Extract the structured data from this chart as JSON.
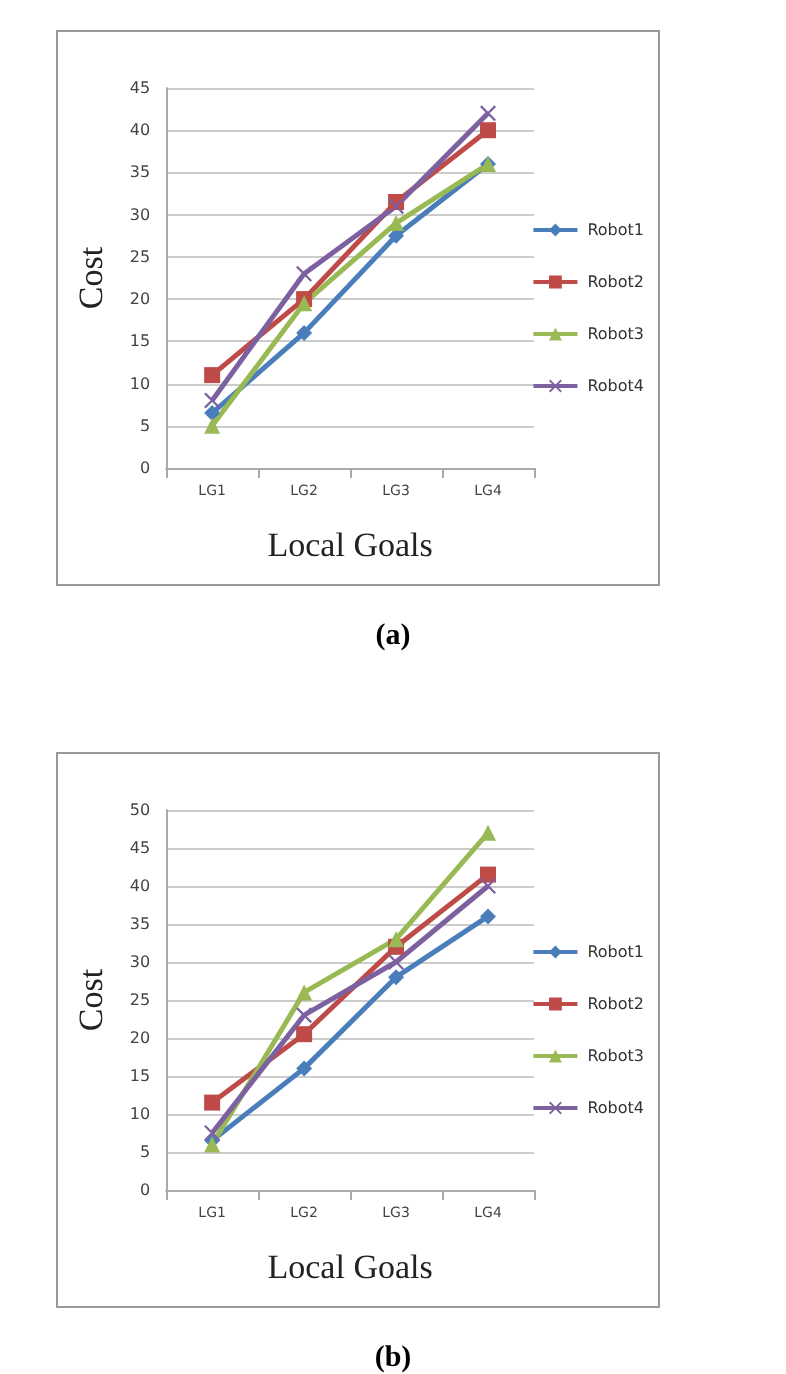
{
  "chart_data": [
    {
      "type": "line",
      "xlabel": "Local Goals",
      "ylabel": "Cost",
      "annotations": [
        "(a)"
      ],
      "categories": [
        "LG1",
        "LG2",
        "LG3",
        "LG4"
      ],
      "ylim": [
        0,
        45
      ],
      "yticks": [
        0,
        5,
        10,
        15,
        20,
        25,
        30,
        35,
        40,
        45
      ],
      "grid": "y",
      "legend": "right",
      "series": [
        {
          "name": "Robot1",
          "color": "#4a7ebb",
          "marker": "diamond",
          "values": [
            6.5,
            16,
            27.5,
            36
          ]
        },
        {
          "name": "Robot2",
          "color": "#be4b48",
          "marker": "square",
          "values": [
            11,
            20,
            31.5,
            40
          ]
        },
        {
          "name": "Robot3",
          "color": "#98b954",
          "marker": "triangle",
          "values": [
            5,
            19.5,
            29,
            36
          ]
        },
        {
          "name": "Robot4",
          "color": "#7d60a0",
          "marker": "cross",
          "values": [
            8,
            23,
            31,
            42
          ]
        }
      ]
    },
    {
      "type": "line",
      "xlabel": "Local Goals",
      "ylabel": "Cost",
      "annotations": [
        "(b)"
      ],
      "categories": [
        "LG1",
        "LG2",
        "LG3",
        "LG4"
      ],
      "ylim": [
        0,
        50
      ],
      "yticks": [
        0,
        5,
        10,
        15,
        20,
        25,
        30,
        35,
        40,
        45,
        50
      ],
      "grid": "y",
      "legend": "right",
      "series": [
        {
          "name": "Robot1",
          "color": "#4a7ebb",
          "marker": "diamond",
          "values": [
            6.5,
            16,
            28,
            36
          ]
        },
        {
          "name": "Robot2",
          "color": "#be4b48",
          "marker": "square",
          "values": [
            11.5,
            20.5,
            32,
            41.5
          ]
        },
        {
          "name": "Robot3",
          "color": "#98b954",
          "marker": "triangle",
          "values": [
            6,
            26,
            33,
            47
          ]
        },
        {
          "name": "Robot4",
          "color": "#7d60a0",
          "marker": "cross",
          "values": [
            7.5,
            23,
            30,
            40
          ]
        }
      ]
    }
  ]
}
